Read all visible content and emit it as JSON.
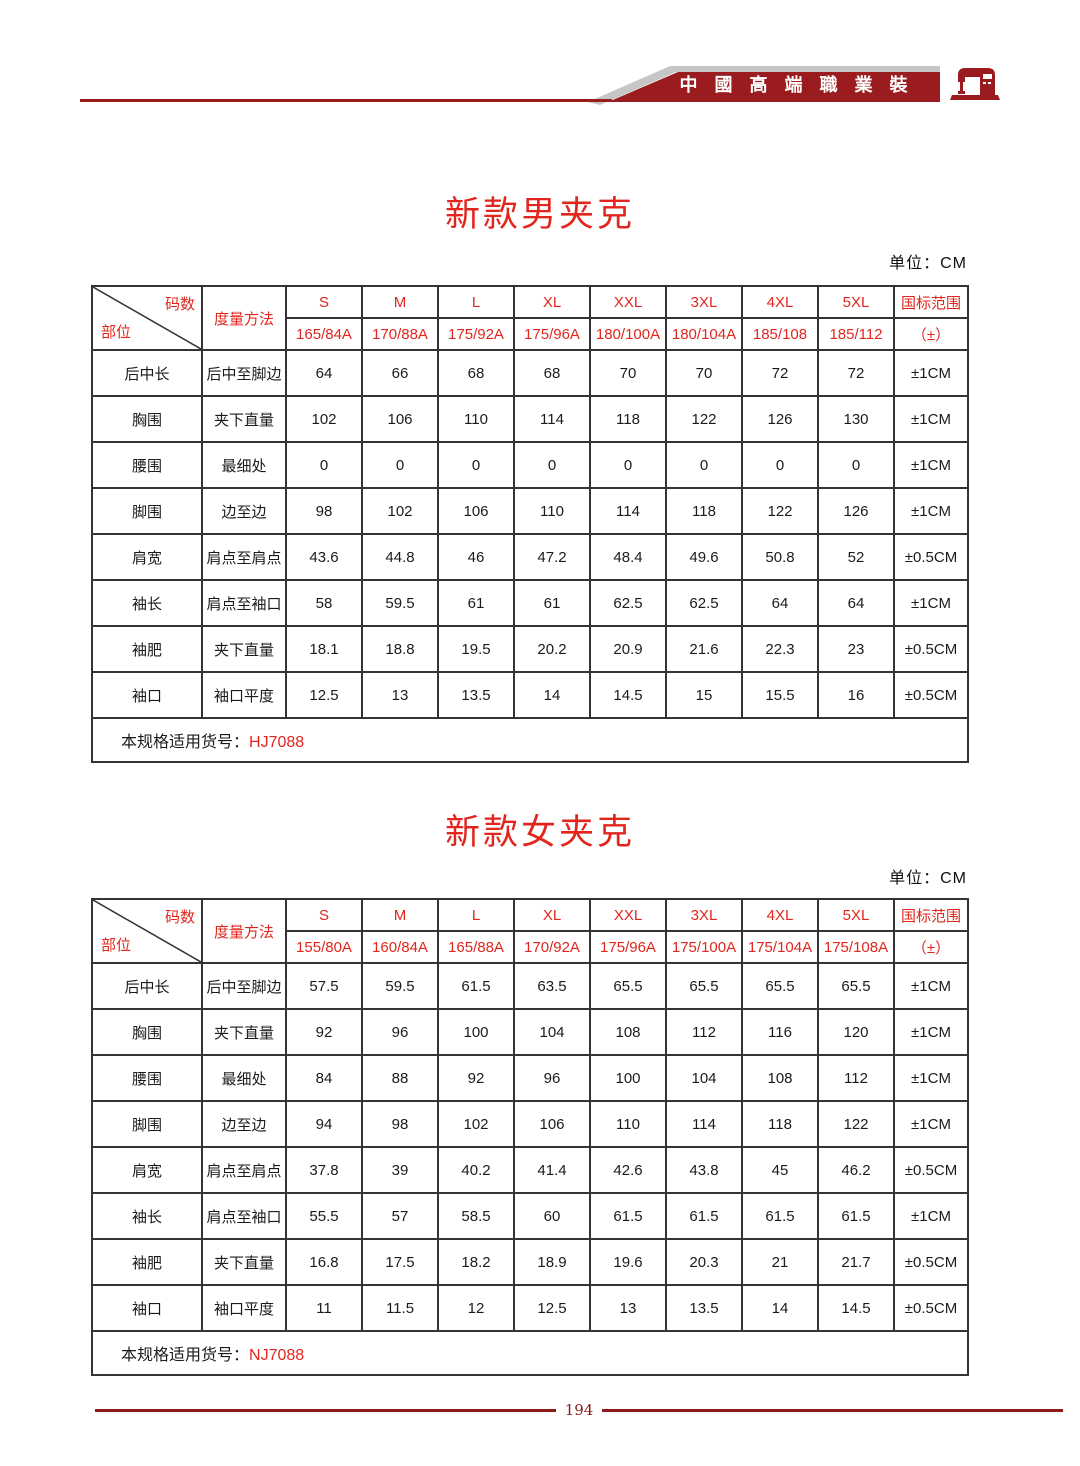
{
  "header": {
    "banner_text": "中國高端職業裝",
    "logo_icon": "sewing-machine-icon",
    "banner_color": "#9b1c1e",
    "silver_color": "#c6c6c6"
  },
  "footer": {
    "page_number": "194"
  },
  "colors": {
    "accent_red": "#e2261d",
    "dark_red": "#8e1a19",
    "border": "#343434"
  },
  "tables": [
    {
      "title": "新款男夹克",
      "unit_label": "单位：CM",
      "corner_top": "码数",
      "corner_bottom": "部位",
      "method_header": "度量方法",
      "sizes": [
        "S",
        "M",
        "L",
        "XL",
        "XXL",
        "3XL",
        "4XL",
        "5XL"
      ],
      "size_specs": [
        "165/84A",
        "170/88A",
        "175/92A",
        "175/96A",
        "180/100A",
        "180/104A",
        "185/108",
        "185/112"
      ],
      "tolerance_header": "国标范围",
      "tolerance_sub": "（±）",
      "rows": [
        {
          "part": "后中长",
          "method": "后中至脚边",
          "values": [
            "64",
            "66",
            "68",
            "68",
            "70",
            "70",
            "72",
            "72"
          ],
          "tolerance": "±1CM"
        },
        {
          "part": "胸围",
          "method": "夹下直量",
          "values": [
            "102",
            "106",
            "110",
            "114",
            "118",
            "122",
            "126",
            "130"
          ],
          "tolerance": "±1CM"
        },
        {
          "part": "腰围",
          "method": "最细处",
          "values": [
            "0",
            "0",
            "0",
            "0",
            "0",
            "0",
            "0",
            "0"
          ],
          "tolerance": "±1CM"
        },
        {
          "part": "脚围",
          "method": "边至边",
          "values": [
            "98",
            "102",
            "106",
            "110",
            "114",
            "118",
            "122",
            "126"
          ],
          "tolerance": "±1CM"
        },
        {
          "part": "肩宽",
          "method": "肩点至肩点",
          "values": [
            "43.6",
            "44.8",
            "46",
            "47.2",
            "48.4",
            "49.6",
            "50.8",
            "52"
          ],
          "tolerance": "±0.5CM"
        },
        {
          "part": "袖长",
          "method": "肩点至袖口",
          "values": [
            "58",
            "59.5",
            "61",
            "61",
            "62.5",
            "62.5",
            "64",
            "64"
          ],
          "tolerance": "±1CM"
        },
        {
          "part": "袖肥",
          "method": "夹下直量",
          "values": [
            "18.1",
            "18.8",
            "19.5",
            "20.2",
            "20.9",
            "21.6",
            "22.3",
            "23"
          ],
          "tolerance": "±0.5CM"
        },
        {
          "part": "袖口",
          "method": "袖口平度",
          "values": [
            "12.5",
            "13",
            "13.5",
            "14",
            "14.5",
            "15",
            "15.5",
            "16"
          ],
          "tolerance": "±0.5CM"
        }
      ],
      "footnote_label": "本规格适用货号：",
      "footnote_value": "HJ7088"
    },
    {
      "title": "新款女夹克",
      "unit_label": "单位：CM",
      "corner_top": "码数",
      "corner_bottom": "部位",
      "method_header": "度量方法",
      "sizes": [
        "S",
        "M",
        "L",
        "XL",
        "XXL",
        "3XL",
        "4XL",
        "5XL"
      ],
      "size_specs": [
        "155/80A",
        "160/84A",
        "165/88A",
        "170/92A",
        "175/96A",
        "175/100A",
        "175/104A",
        "175/108A"
      ],
      "tolerance_header": "国标范围",
      "tolerance_sub": "（±）",
      "rows": [
        {
          "part": "后中长",
          "method": "后中至脚边",
          "values": [
            "57.5",
            "59.5",
            "61.5",
            "63.5",
            "65.5",
            "65.5",
            "65.5",
            "65.5"
          ],
          "tolerance": "±1CM"
        },
        {
          "part": "胸围",
          "method": "夹下直量",
          "values": [
            "92",
            "96",
            "100",
            "104",
            "108",
            "112",
            "116",
            "120"
          ],
          "tolerance": "±1CM"
        },
        {
          "part": "腰围",
          "method": "最细处",
          "values": [
            "84",
            "88",
            "92",
            "96",
            "100",
            "104",
            "108",
            "112"
          ],
          "tolerance": "±1CM"
        },
        {
          "part": "脚围",
          "method": "边至边",
          "values": [
            "94",
            "98",
            "102",
            "106",
            "110",
            "114",
            "118",
            "122"
          ],
          "tolerance": "±1CM"
        },
        {
          "part": "肩宽",
          "method": "肩点至肩点",
          "values": [
            "37.8",
            "39",
            "40.2",
            "41.4",
            "42.6",
            "43.8",
            "45",
            "46.2"
          ],
          "tolerance": "±0.5CM"
        },
        {
          "part": "袖长",
          "method": "肩点至袖口",
          "values": [
            "55.5",
            "57",
            "58.5",
            "60",
            "61.5",
            "61.5",
            "61.5",
            "61.5"
          ],
          "tolerance": "±1CM"
        },
        {
          "part": "袖肥",
          "method": "夹下直量",
          "values": [
            "16.8",
            "17.5",
            "18.2",
            "18.9",
            "19.6",
            "20.3",
            "21",
            "21.7"
          ],
          "tolerance": "±0.5CM"
        },
        {
          "part": "袖口",
          "method": "袖口平度",
          "values": [
            "11",
            "11.5",
            "12",
            "12.5",
            "13",
            "13.5",
            "14",
            "14.5"
          ],
          "tolerance": "±0.5CM"
        }
      ],
      "footnote_label": "本规格适用货号：",
      "footnote_value": "NJ7088"
    }
  ]
}
